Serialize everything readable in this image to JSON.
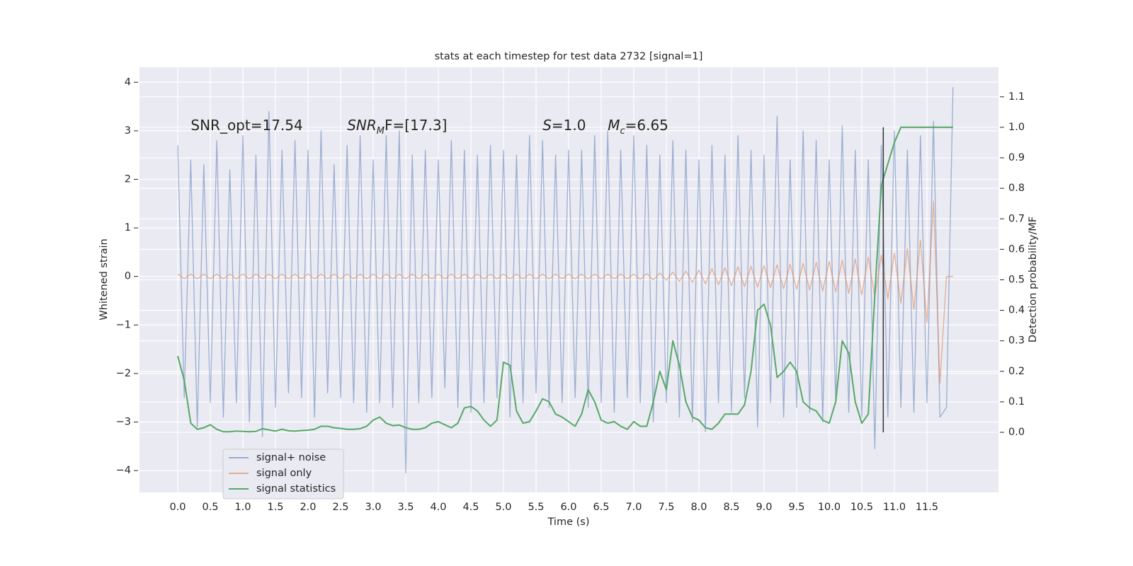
{
  "chart_data": {
    "type": "line",
    "title": "stats at each timestep for test data 2732 [signal=1]",
    "xlabel": "Time (s)",
    "ylabel": "Whitened strain",
    "y2label": "Detection probability/MF",
    "xlim": [
      -0.587,
      12.598
    ],
    "ylim": [
      -4.45,
      4.31
    ],
    "y2lim": [
      -0.197,
      1.197
    ],
    "xticks": [
      {
        "value": 0,
        "label": "0.0"
      },
      0.5,
      {
        "value": 1,
        "label": "1.0"
      },
      1.5,
      {
        "value": 2,
        "label": "2.0"
      },
      2.5,
      {
        "value": 3,
        "label": "3.0"
      },
      3.5,
      {
        "value": 4,
        "label": "4.0"
      },
      4.5,
      {
        "value": 5,
        "label": "5.0"
      },
      5.5,
      {
        "value": 6,
        "label": "6.0"
      },
      6.5,
      {
        "value": 7,
        "label": "7.0"
      },
      7.5,
      {
        "value": 8,
        "label": "8.0"
      },
      8.5,
      {
        "value": 9,
        "label": "9.0"
      },
      9.5,
      {
        "value": 10,
        "label": "10.0"
      },
      10.5,
      {
        "value": 11,
        "label": "11.0"
      },
      11.5
    ],
    "yticks": [
      {
        "value": -4,
        "label": "−4"
      },
      {
        "value": -3,
        "label": "−3"
      },
      {
        "value": -2,
        "label": "−2"
      },
      {
        "value": -1,
        "label": "−1"
      },
      0,
      1,
      2,
      3,
      4
    ],
    "y2ticks": [
      {
        "value": 0,
        "label": "0.0"
      },
      0.1,
      0.2,
      0.3,
      0.4,
      0.5,
      0.6,
      0.7,
      0.8,
      0.9,
      {
        "value": 1,
        "label": "1.0"
      },
      1.1
    ],
    "grid": true,
    "legend": "lower left",
    "x": [
      0,
      0.1,
      0.2,
      0.3,
      0.4,
      0.5,
      0.6,
      0.7,
      0.8,
      0.9,
      1,
      1.1,
      1.2,
      1.3,
      1.4,
      1.5,
      1.6,
      1.7,
      1.8,
      1.9,
      2,
      2.1,
      2.2,
      2.3,
      2.4,
      2.5,
      2.6,
      2.7,
      2.8,
      2.9,
      3,
      3.1,
      3.2,
      3.3,
      3.4,
      3.5,
      3.6,
      3.7,
      3.8,
      3.9,
      4,
      4.1,
      4.2,
      4.3,
      4.4,
      4.5,
      4.6,
      4.7,
      4.8,
      4.9,
      5,
      5.1,
      5.2,
      5.3,
      5.4,
      5.5,
      5.6,
      5.7,
      5.8,
      5.9,
      6,
      6.1,
      6.2,
      6.3,
      6.4,
      6.5,
      6.6,
      6.7,
      6.8,
      6.9,
      7,
      7.1,
      7.2,
      7.3,
      7.4,
      7.5,
      7.6,
      7.7,
      7.8,
      7.9,
      8,
      8.1,
      8.2,
      8.3,
      8.4,
      8.5,
      8.6,
      8.7,
      8.8,
      8.9,
      9,
      9.1,
      9.2,
      9.3,
      9.4,
      9.5,
      9.6,
      9.7,
      9.8,
      9.9,
      10,
      10.1,
      10.2,
      10.3,
      10.4,
      10.5,
      10.6,
      10.7,
      10.8,
      10.9,
      11,
      11.1,
      11.2,
      11.3,
      11.4,
      11.5,
      11.6,
      11.7,
      11.8,
      11.9
    ],
    "series": [
      {
        "name": "signal+ noise",
        "color": "#4c72b0",
        "values": [
          2.7,
          -2.5,
          2.4,
          -3.1,
          2.3,
          -2.6,
          2.8,
          -2.9,
          2.2,
          -2.6,
          2.9,
          -3.0,
          2.5,
          -3.3,
          3.4,
          -2.7,
          2.6,
          -2.4,
          2.8,
          -2.5,
          2.6,
          -2.9,
          3.0,
          -2.4,
          2.3,
          -2.5,
          2.7,
          -2.6,
          2.9,
          -2.8,
          2.4,
          -2.6,
          2.9,
          -2.7,
          3.0,
          -4.05,
          2.5,
          -2.6,
          2.6,
          -2.5,
          2.4,
          -2.3,
          2.8,
          -2.7,
          2.6,
          -2.8,
          2.5,
          -2.6,
          2.7,
          -2.5,
          2.6,
          -2.9,
          2.5,
          -2.6,
          2.9,
          -2.4,
          2.8,
          -2.7,
          2.5,
          -2.6,
          2.6,
          -2.5,
          2.6,
          -2.7,
          2.9,
          -2.6,
          3.0,
          -2.8,
          2.6,
          -2.5,
          2.9,
          -2.6,
          2.7,
          -3.0,
          2.5,
          -2.6,
          2.8,
          -2.9,
          2.6,
          -3.0,
          2.4,
          -3.2,
          2.7,
          -2.6,
          2.5,
          -2.8,
          2.9,
          -2.5,
          2.6,
          -3.1,
          2.5,
          -2.6,
          3.3,
          -2.9,
          2.4,
          -2.7,
          3.0,
          -2.8,
          2.8,
          -3.0,
          2.4,
          -2.6,
          3.1,
          -2.8,
          2.6,
          -2.9,
          2.4,
          -3.55,
          2.7,
          -2.9,
          3.0,
          -2.7,
          2.6,
          -2.8,
          2.9,
          -2.6,
          3.2,
          -2.9,
          -2.7,
          3.9
        ]
      },
      {
        "name": "signal only",
        "color": "#dd8452",
        "values": [
          0.05,
          -0.05,
          0.05,
          -0.05,
          0.05,
          -0.05,
          0.05,
          -0.05,
          0.05,
          -0.05,
          0.05,
          -0.05,
          0.05,
          -0.05,
          0.05,
          -0.05,
          0.05,
          -0.05,
          0.05,
          -0.05,
          0.05,
          -0.05,
          0.05,
          -0.05,
          0.05,
          -0.05,
          0.05,
          -0.05,
          0.05,
          -0.05,
          0.05,
          -0.05,
          0.05,
          -0.05,
          0.05,
          -0.05,
          0.05,
          -0.05,
          0.05,
          -0.05,
          0.05,
          -0.05,
          0.05,
          -0.05,
          0.05,
          -0.05,
          0.05,
          -0.05,
          0.05,
          -0.05,
          0.05,
          -0.05,
          0.05,
          -0.05,
          0.05,
          -0.05,
          0.05,
          -0.05,
          0.05,
          -0.05,
          0.05,
          -0.05,
          0.05,
          -0.05,
          0.05,
          -0.05,
          0.05,
          -0.05,
          0.05,
          -0.05,
          0.05,
          -0.06,
          0.06,
          -0.07,
          0.07,
          -0.08,
          0.09,
          -0.1,
          0.11,
          -0.12,
          0.13,
          -0.15,
          0.16,
          -0.17,
          0.18,
          -0.19,
          0.2,
          -0.21,
          0.21,
          -0.22,
          0.22,
          -0.23,
          0.24,
          -0.25,
          0.25,
          -0.26,
          0.27,
          -0.28,
          0.29,
          -0.3,
          0.31,
          -0.32,
          0.33,
          -0.35,
          0.36,
          -0.38,
          0.4,
          -0.42,
          0.44,
          -0.46,
          0.48,
          -0.55,
          0.58,
          -0.68,
          0.75,
          -0.95,
          1.55,
          -2.2,
          0,
          0
        ]
      },
      {
        "name": "signal statistics",
        "color": "#55a868",
        "axis": "y2",
        "values": [
          0.25,
          0.17,
          0.03,
          0.01,
          0.015,
          0.025,
          0.01,
          0.002,
          0.002,
          0.004,
          0.003,
          0.002,
          0.003,
          0.012,
          0.008,
          0.004,
          0.01,
          0.005,
          0.004,
          0.006,
          0.007,
          0.01,
          0.02,
          0.02,
          0.015,
          0.013,
          0.01,
          0.01,
          0.012,
          0.02,
          0.04,
          0.05,
          0.03,
          0.022,
          0.024,
          0.015,
          0.01,
          0.01,
          0.015,
          0.03,
          0.035,
          0.025,
          0.015,
          0.03,
          0.08,
          0.085,
          0.07,
          0.04,
          0.02,
          0.04,
          0.23,
          0.22,
          0.07,
          0.03,
          0.035,
          0.07,
          0.11,
          0.1,
          0.06,
          0.05,
          0.035,
          0.02,
          0.06,
          0.14,
          0.1,
          0.04,
          0.03,
          0.035,
          0.02,
          0.01,
          0.035,
          0.02,
          0.02,
          0.1,
          0.2,
          0.14,
          0.3,
          0.22,
          0.1,
          0.05,
          0.04,
          0.015,
          0.01,
          0.03,
          0.06,
          0.06,
          0.06,
          0.09,
          0.2,
          0.4,
          0.42,
          0.35,
          0.18,
          0.2,
          0.23,
          0.2,
          0.1,
          0.08,
          0.07,
          0.04,
          0.03,
          0.1,
          0.3,
          0.26,
          0.1,
          0.03,
          0.06,
          0.45,
          0.81,
          0.88,
          0.95,
          1.0,
          1.0,
          1.0,
          1.0,
          1.0,
          1.0,
          1.0,
          1.0,
          1.0
        ]
      }
    ],
    "vline": {
      "x": 10.83,
      "y2": [
        0,
        1
      ],
      "color": "#333333"
    },
    "annotations": [
      {
        "x": 0.2,
        "y": 3.1,
        "parts": [
          {
            "text": "SNR_opt=17.54"
          }
        ]
      },
      {
        "x": 2.6,
        "y": 3.1,
        "parts": [
          {
            "text": "SNR",
            "italic": true
          },
          {
            "text": "M",
            "italic": true,
            "sub": true
          },
          {
            "text": "F=[17.3]"
          }
        ]
      },
      {
        "x": 5.6,
        "y": 3.1,
        "parts": [
          {
            "text": "S",
            "italic": true
          },
          {
            "text": "=1.0"
          }
        ]
      },
      {
        "x": 6.6,
        "y": 3.1,
        "parts": [
          {
            "text": "M",
            "italic": true
          },
          {
            "text": "c",
            "italic": true,
            "sub": true
          },
          {
            "text": "=6.65"
          }
        ]
      }
    ]
  }
}
